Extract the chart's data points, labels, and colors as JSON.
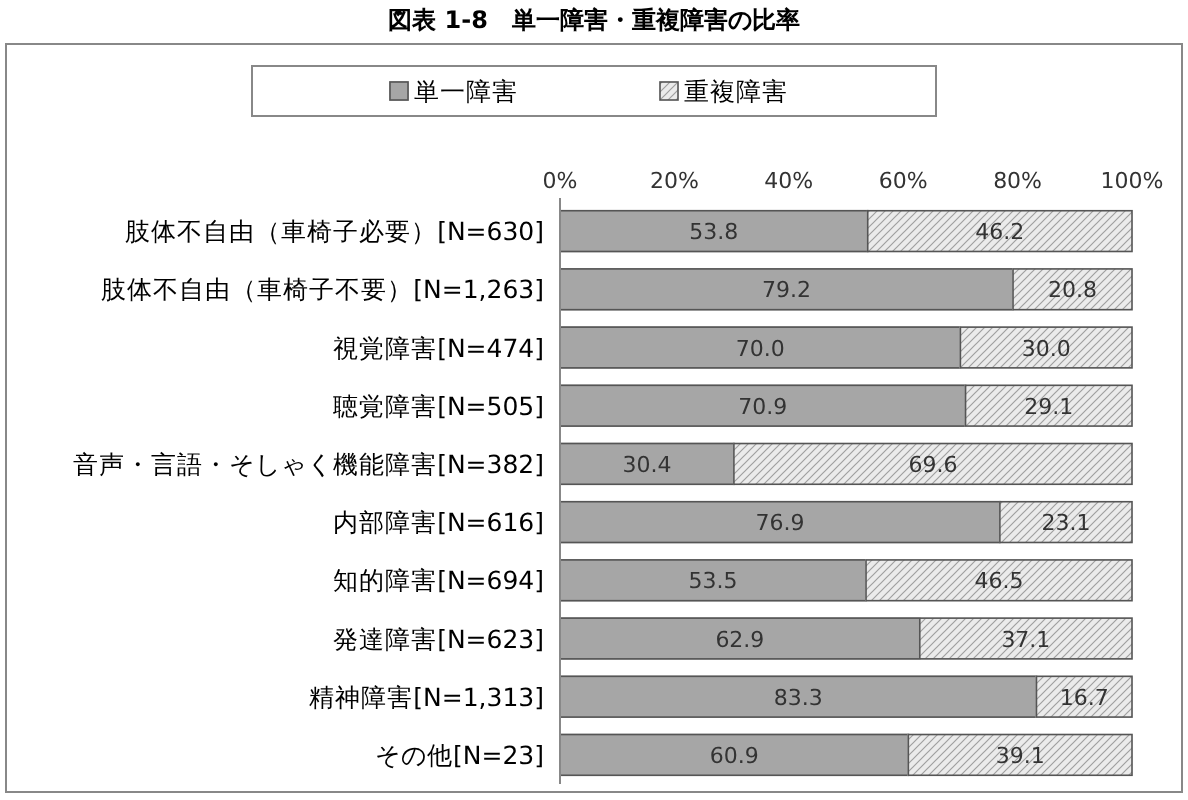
{
  "chart_data": {
    "type": "bar",
    "orientation": "horizontal",
    "stacked": true,
    "title": "図表 1-8　単一障害・重複障害の比率",
    "categories": [
      "肢体不自由（車椅子必要）[N=630]",
      "肢体不自由（車椅子不要）[N=1,263]",
      "視覚障害[N=474]",
      "聴覚障害[N=505]",
      "音声・言語・そしゃく機能障害[N=382]",
      "内部障害[N=616]",
      "知的障害[N=694]",
      "発達障害[N=623]",
      "精神障害[N=1,313]",
      "その他[N=23]"
    ],
    "series": [
      {
        "name": "単一障害",
        "color": "#a6a6a6",
        "values": [
          53.8,
          79.2,
          70.0,
          70.9,
          30.4,
          76.9,
          53.5,
          62.9,
          83.3,
          60.9
        ],
        "value_labels": [
          "53.8",
          "79.2",
          "70.0",
          "70.9",
          "30.4",
          "76.9",
          "53.5",
          "62.9",
          "83.3",
          "60.9"
        ]
      },
      {
        "name": "重複障害",
        "color": "#ebebeb",
        "values": [
          46.2,
          20.8,
          30.0,
          29.1,
          69.6,
          23.1,
          46.5,
          37.1,
          16.7,
          39.1
        ],
        "value_labels": [
          "46.2",
          "20.8",
          "30.0",
          "29.1",
          "69.6",
          "23.1",
          "46.5",
          "37.1",
          "16.7",
          "39.1"
        ]
      }
    ],
    "xlim": [
      0,
      100
    ],
    "xticks": [
      {
        "value": 0,
        "label": "0%"
      },
      {
        "value": 20,
        "label": "20%"
      },
      {
        "value": 40,
        "label": "40%"
      },
      {
        "value": 60,
        "label": "60%"
      },
      {
        "value": 80,
        "label": "80%"
      },
      {
        "value": 100,
        "label": "100%"
      }
    ],
    "legend": "top"
  }
}
